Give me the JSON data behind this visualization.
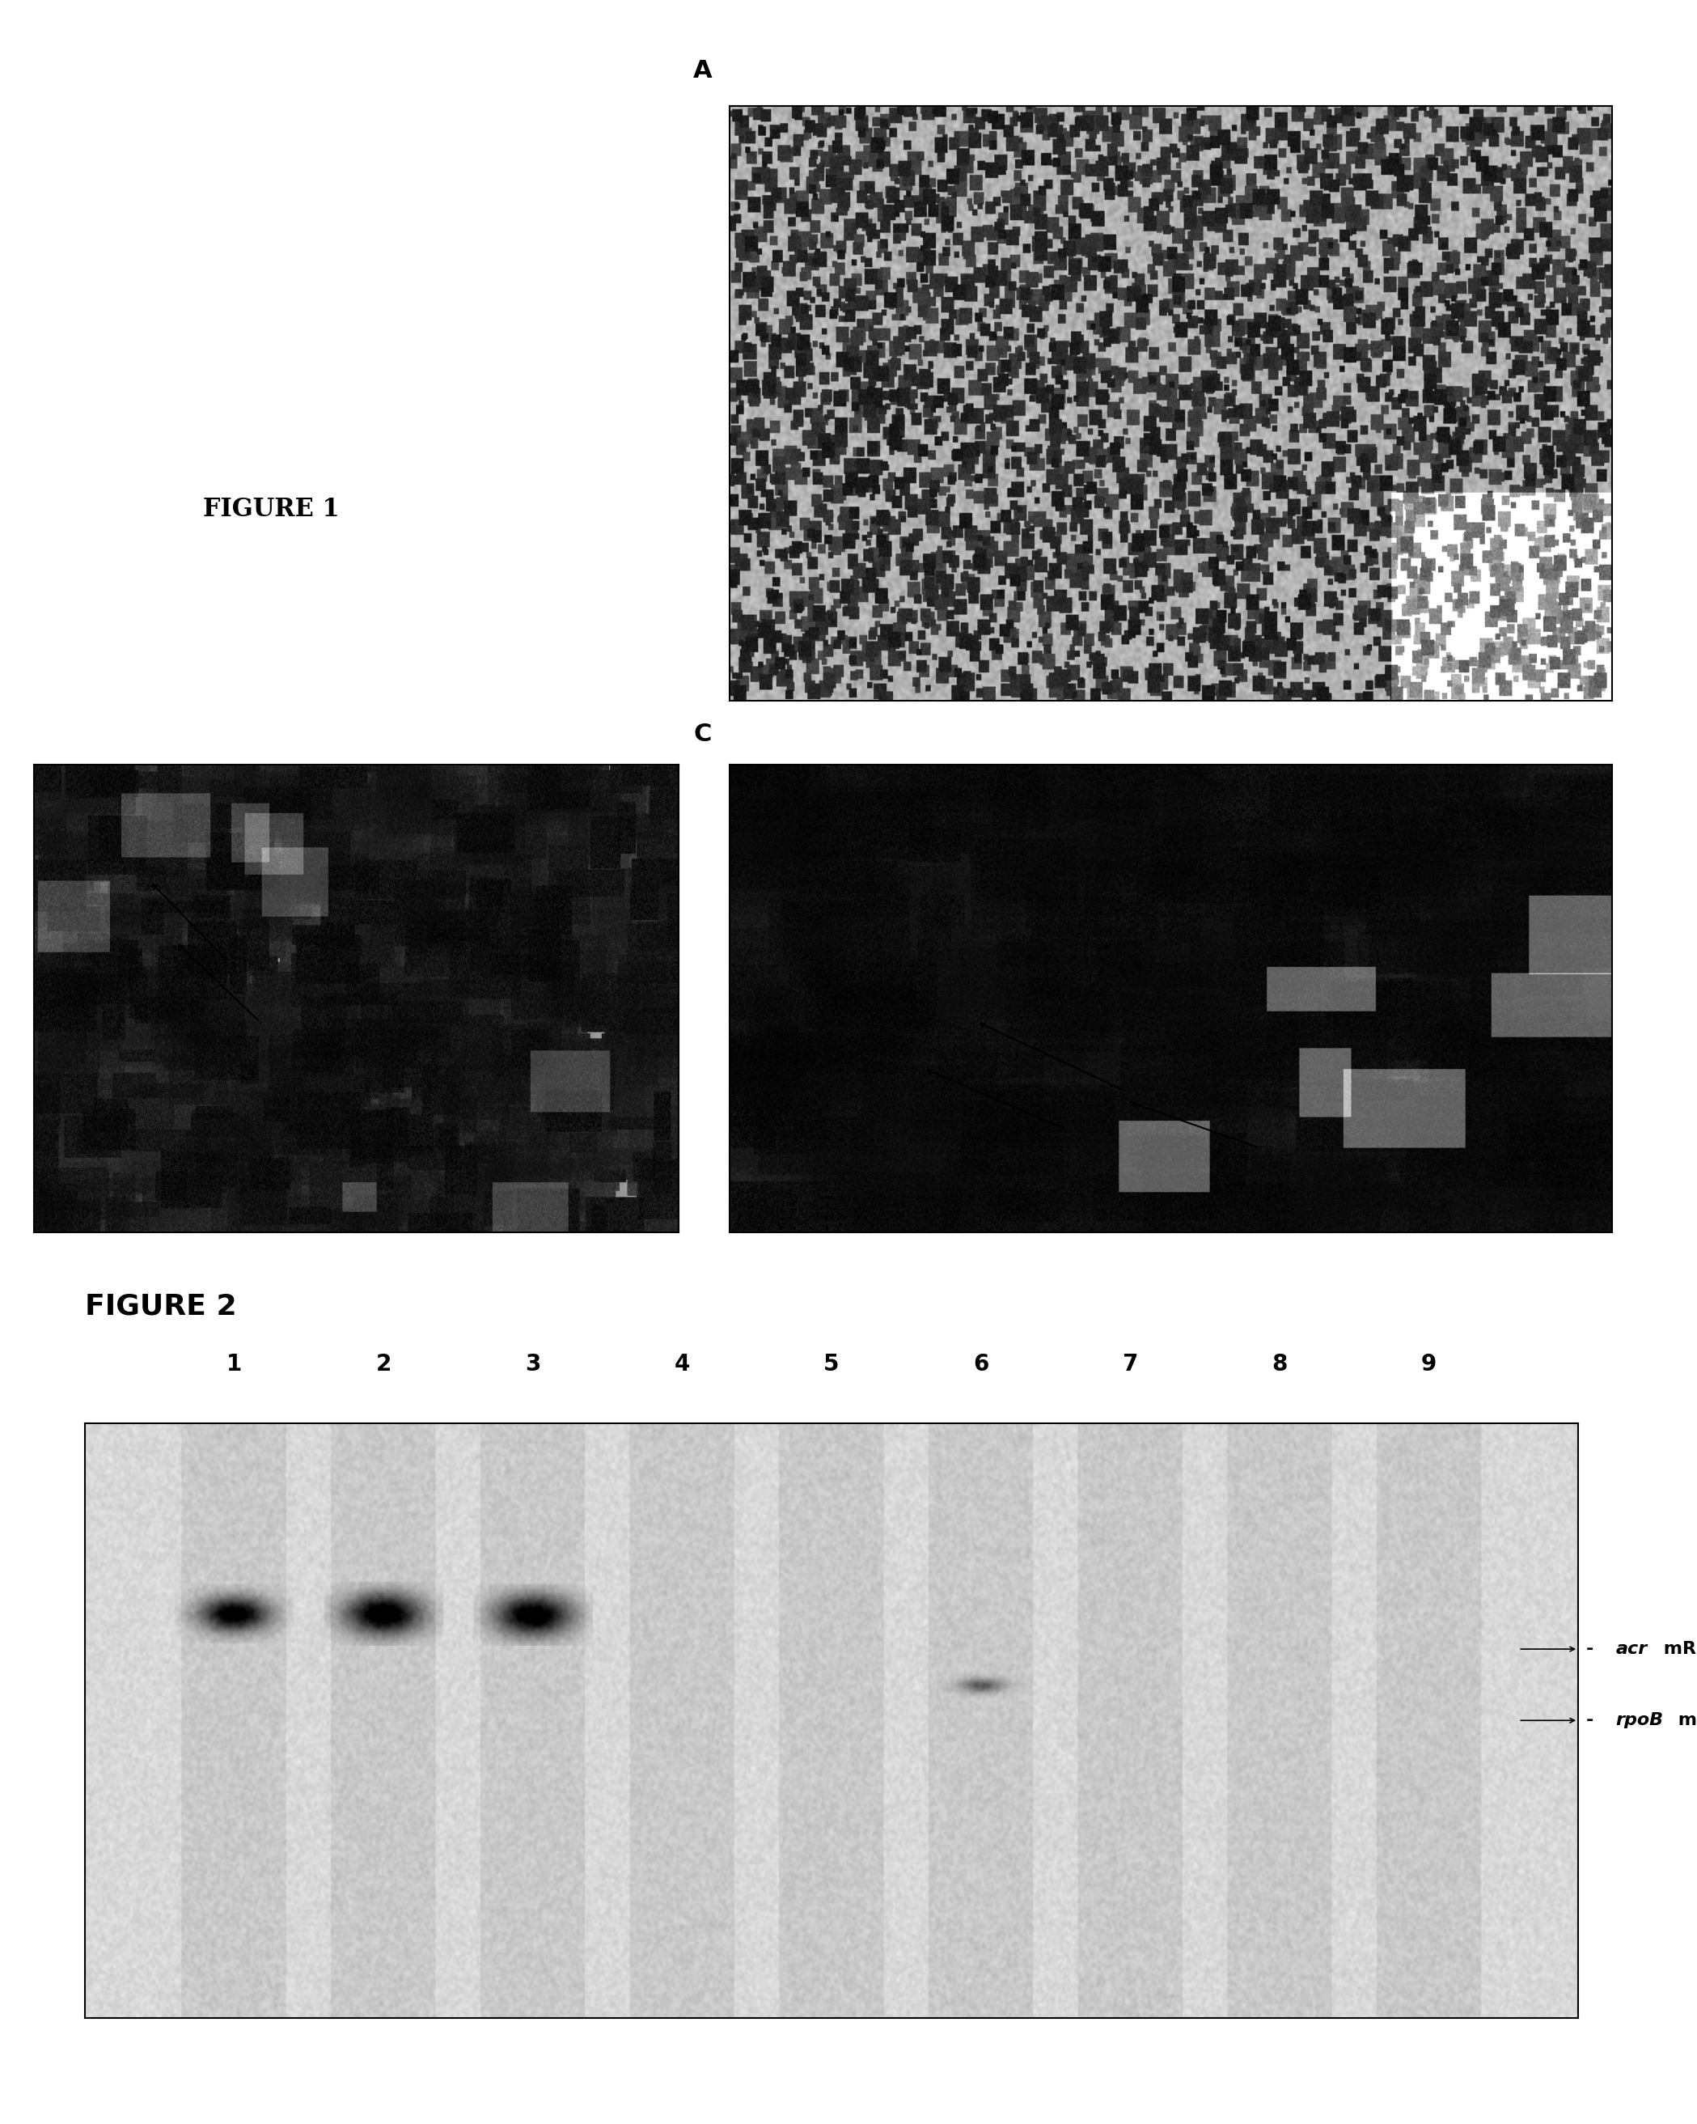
{
  "background_color": "#ffffff",
  "figure_width": 20.98,
  "figure_height": 26.25,
  "fig1_label": "FIGURE 1",
  "fig2_label": "FIGURE 2",
  "panel_A_label": "A",
  "panel_C_label": "C",
  "lane_labels": [
    "1",
    "2",
    "3",
    "4",
    "5",
    "6",
    "7",
    "8",
    "9"
  ],
  "acr_label_italic": "acr",
  "acr_label_rest": " mRNA",
  "rpob_label_italic": "rpoB",
  "rpob_label_rest": " mRNA",
  "text_color": "#000000",
  "fig1_label_fontsize": 22,
  "fig2_label_fontsize": 26,
  "lane_label_fontsize": 20,
  "mrna_label_fontsize": 16,
  "panel_label_fontsize": 20,
  "noise_seed": 42,
  "blot_noise_seed": 77
}
